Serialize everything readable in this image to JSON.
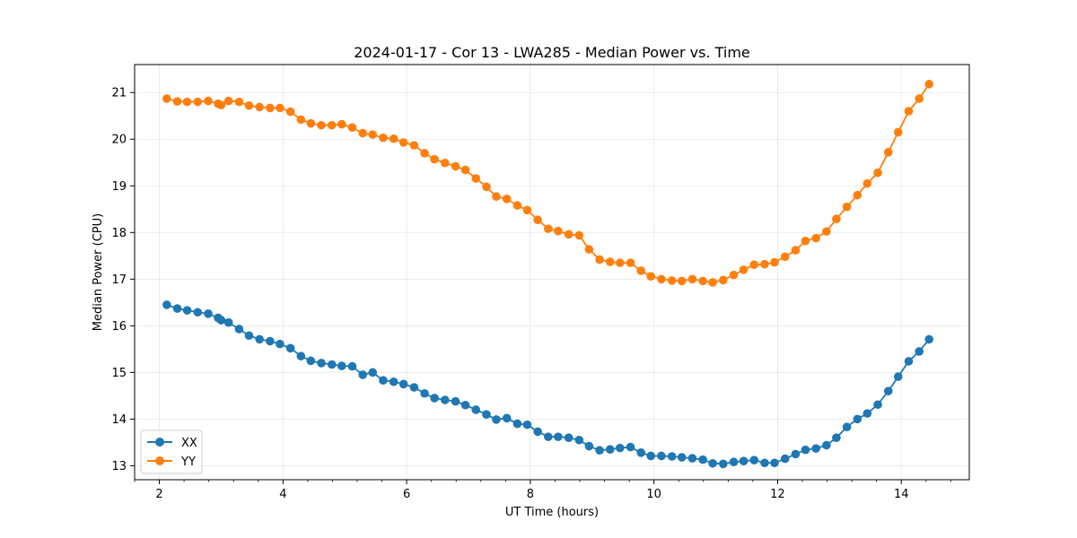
{
  "chart_data": {
    "type": "line",
    "title": "2024-01-17 - Cor 13 - LWA285 - Median Power vs. Time",
    "xlabel": "UT Time (hours)",
    "ylabel": "Median Power (CPU)",
    "xlim": [
      1.6,
      15.1
    ],
    "ylim": [
      12.7,
      21.6
    ],
    "xticks": [
      2,
      4,
      6,
      8,
      10,
      12,
      14
    ],
    "yticks": [
      13,
      14,
      15,
      16,
      17,
      18,
      19,
      20,
      21
    ],
    "grid": true,
    "legend_position": "lower-left",
    "series": [
      {
        "name": "XX",
        "color": "#1f77b4",
        "marker": "circle",
        "x": [
          2.12,
          2.29,
          2.45,
          2.62,
          2.79,
          2.95,
          3.0,
          3.12,
          3.29,
          3.45,
          3.62,
          3.79,
          3.95,
          4.12,
          4.29,
          4.45,
          4.62,
          4.79,
          4.95,
          5.12,
          5.29,
          5.45,
          5.62,
          5.79,
          5.95,
          6.12,
          6.29,
          6.45,
          6.62,
          6.79,
          6.95,
          7.12,
          7.29,
          7.45,
          7.62,
          7.79,
          7.95,
          8.12,
          8.29,
          8.45,
          8.62,
          8.79,
          8.95,
          9.12,
          9.29,
          9.45,
          9.62,
          9.79,
          9.95,
          10.12,
          10.29,
          10.45,
          10.62,
          10.79,
          10.95,
          11.12,
          11.29,
          11.45,
          11.62,
          11.79,
          11.95,
          12.12,
          12.29,
          12.45,
          12.62,
          12.79,
          12.95,
          13.12,
          13.29,
          13.45,
          13.62,
          13.79,
          13.95,
          14.12,
          14.29,
          14.45
        ],
        "y": [
          16.45,
          16.37,
          16.33,
          16.29,
          16.26,
          16.17,
          16.12,
          16.07,
          15.93,
          15.79,
          15.71,
          15.67,
          15.61,
          15.52,
          15.35,
          15.25,
          15.2,
          15.17,
          15.14,
          15.13,
          14.95,
          15.0,
          14.83,
          14.8,
          14.75,
          14.68,
          14.55,
          14.45,
          14.41,
          14.38,
          14.3,
          14.2,
          14.1,
          13.99,
          14.02,
          13.9,
          13.88,
          13.73,
          13.62,
          13.62,
          13.6,
          13.55,
          13.42,
          13.33,
          13.35,
          13.38,
          13.4,
          13.28,
          13.21,
          13.21,
          13.2,
          13.18,
          13.16,
          13.13,
          13.05,
          13.04,
          13.08,
          13.1,
          13.12,
          13.06,
          13.06,
          13.15,
          13.25,
          13.34,
          13.37,
          13.44,
          13.6,
          13.83,
          14.0,
          14.12,
          14.31,
          14.6,
          14.91,
          15.24,
          15.45,
          15.71
        ]
      },
      {
        "name": "YY",
        "color": "#ff7f0e",
        "marker": "circle",
        "x": [
          2.12,
          2.29,
          2.45,
          2.62,
          2.79,
          2.95,
          3.0,
          3.12,
          3.29,
          3.45,
          3.62,
          3.79,
          3.95,
          4.12,
          4.29,
          4.45,
          4.62,
          4.79,
          4.95,
          5.12,
          5.29,
          5.45,
          5.62,
          5.79,
          5.95,
          6.12,
          6.29,
          6.45,
          6.62,
          6.79,
          6.95,
          7.12,
          7.29,
          7.45,
          7.62,
          7.79,
          7.95,
          8.12,
          8.29,
          8.45,
          8.62,
          8.79,
          8.95,
          9.12,
          9.29,
          9.45,
          9.62,
          9.79,
          9.95,
          10.12,
          10.29,
          10.45,
          10.62,
          10.79,
          10.95,
          11.12,
          11.29,
          11.45,
          11.62,
          11.79,
          11.95,
          12.12,
          12.29,
          12.45,
          12.62,
          12.79,
          12.95,
          13.12,
          13.29,
          13.45,
          13.62,
          13.79,
          13.95,
          14.12,
          14.29,
          14.45
        ],
        "y": [
          20.87,
          20.81,
          20.8,
          20.8,
          20.82,
          20.76,
          20.73,
          20.82,
          20.8,
          20.72,
          20.69,
          20.67,
          20.67,
          20.59,
          20.42,
          20.34,
          20.3,
          20.3,
          20.32,
          20.25,
          20.13,
          20.1,
          20.03,
          20.01,
          19.93,
          19.87,
          19.7,
          19.57,
          19.49,
          19.42,
          19.34,
          19.16,
          18.98,
          18.77,
          18.72,
          18.58,
          18.48,
          18.27,
          18.08,
          18.03,
          17.96,
          17.94,
          17.64,
          17.42,
          17.37,
          17.35,
          17.35,
          17.18,
          17.06,
          17.0,
          16.97,
          16.96,
          17.0,
          16.96,
          16.93,
          16.98,
          17.09,
          17.2,
          17.31,
          17.32,
          17.36,
          17.48,
          17.62,
          17.82,
          17.88,
          18.02,
          18.29,
          18.55,
          18.8,
          19.05,
          19.28,
          19.72,
          20.15,
          20.6,
          20.87,
          21.18
        ]
      }
    ]
  }
}
